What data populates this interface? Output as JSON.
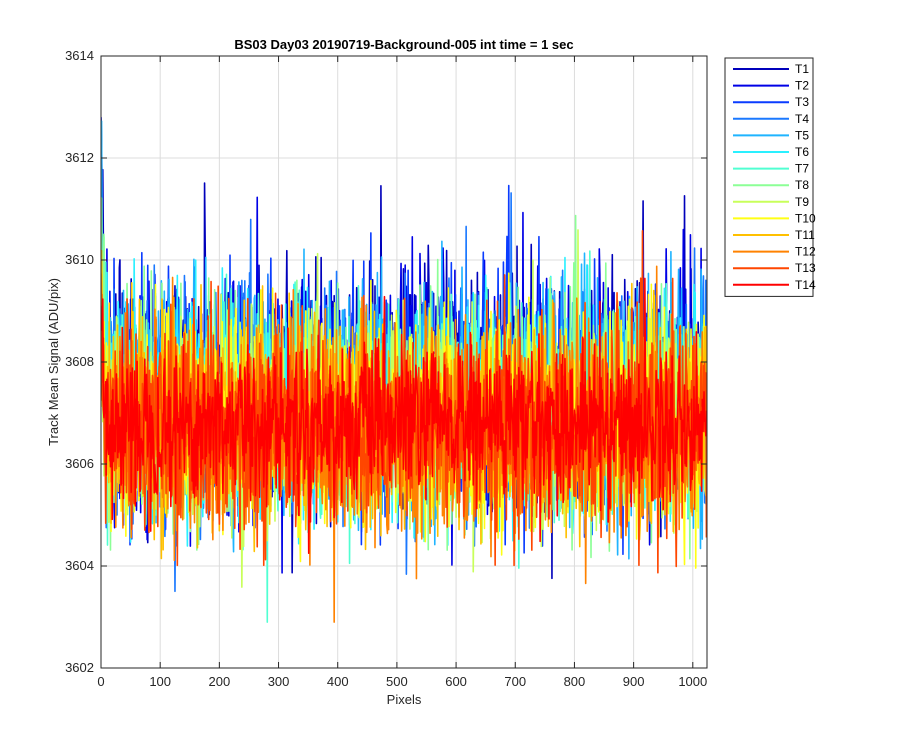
{
  "chart_data": {
    "type": "line",
    "title": "BS03 Day03 20190719-Background-005 int time = 1 sec",
    "xlabel": "Pixels",
    "ylabel": "Track Mean Signal (ADU/pix)",
    "xlim": [
      0,
      1024
    ],
    "ylim": [
      3602,
      3614
    ],
    "x_ticks": [
      0,
      100,
      200,
      300,
      400,
      500,
      600,
      700,
      800,
      900,
      1000
    ],
    "y_ticks": [
      3602,
      3604,
      3606,
      3608,
      3610,
      3612,
      3614
    ],
    "grid": true,
    "legend_position": "outside-top-right",
    "x_points": 1024,
    "series": [
      {
        "name": "T1",
        "color": "#0000bb",
        "mean": 3607.5,
        "spread": 1.5
      },
      {
        "name": "T2",
        "color": "#0000e6",
        "mean": 3607.4,
        "spread": 1.5
      },
      {
        "name": "T3",
        "color": "#0a3cff",
        "mean": 3607.3,
        "spread": 1.45
      },
      {
        "name": "T4",
        "color": "#1a78ff",
        "mean": 3607.2,
        "spread": 1.45
      },
      {
        "name": "T5",
        "color": "#1fb4ff",
        "mean": 3607.2,
        "spread": 1.4
      },
      {
        "name": "T6",
        "color": "#2af0ff",
        "mean": 3607.1,
        "spread": 1.4
      },
      {
        "name": "T7",
        "color": "#50ffd2",
        "mean": 3607.0,
        "spread": 1.35
      },
      {
        "name": "T8",
        "color": "#8cff96",
        "mean": 3607.0,
        "spread": 1.35
      },
      {
        "name": "T9",
        "color": "#c8ff5a",
        "mean": 3606.9,
        "spread": 1.3
      },
      {
        "name": "T10",
        "color": "#ffff14",
        "mean": 3606.8,
        "spread": 1.3
      },
      {
        "name": "T11",
        "color": "#ffc000",
        "mean": 3606.8,
        "spread": 1.3
      },
      {
        "name": "T12",
        "color": "#ff8200",
        "mean": 3606.7,
        "spread": 1.35
      },
      {
        "name": "T13",
        "color": "#ff4600",
        "mean": 3606.7,
        "spread": 1.35
      },
      {
        "name": "T14",
        "color": "#ff0000",
        "mean": 3606.8,
        "spread": 1.0
      }
    ]
  }
}
